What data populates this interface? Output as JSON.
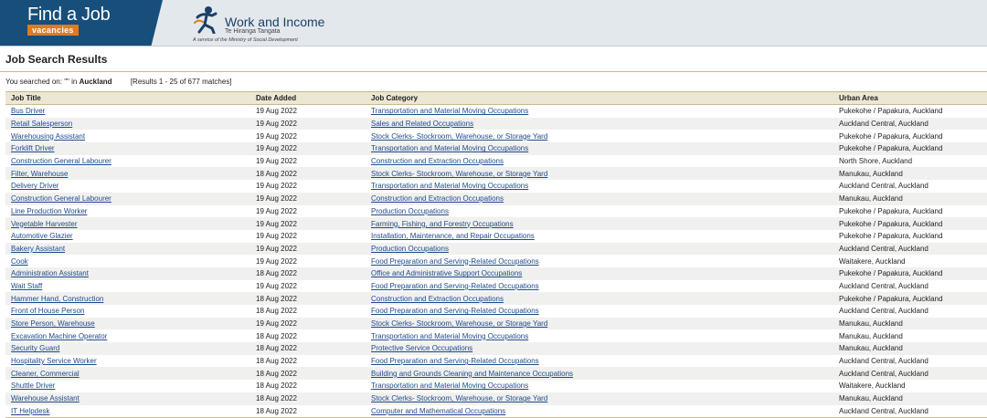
{
  "header": {
    "findajob_title": "Find a Job",
    "findajob_sub": "vacancies",
    "wi_title": "Work and Income",
    "wi_maori": "Te Hiranga Tangata",
    "wi_tagline": "A service of the Ministry of Social Development"
  },
  "page": {
    "title": "Job Search Results",
    "searched_on_prefix": "You searched on: \"\" in",
    "searched_location": "Auckland",
    "results_summary": "[Results 1 - 25 of 677 matches]"
  },
  "table": {
    "columns": [
      "Job Title",
      "Date Added",
      "Job Category",
      "Urban Area"
    ],
    "rows": [
      {
        "title": "Bus Driver",
        "date": "19 Aug 2022",
        "category": "Transportation and Material Moving Occupations",
        "area": "Pukekohe / Papakura, Auckland"
      },
      {
        "title": "Retail Salesperson",
        "date": "19 Aug 2022",
        "category": "Sales and Related Occupations",
        "area": "Auckland Central, Auckland"
      },
      {
        "title": "Warehousing Assistant",
        "date": "19 Aug 2022",
        "category": "Stock Clerks- Stockroom, Warehouse, or Storage Yard",
        "area": "Pukekohe / Papakura, Auckland"
      },
      {
        "title": "Forklift Driver",
        "date": "19 Aug 2022",
        "category": "Transportation and Material Moving Occupations",
        "area": "Pukekohe / Papakura, Auckland"
      },
      {
        "title": "Construction General Labourer",
        "date": "19 Aug 2022",
        "category": "Construction and Extraction Occupations",
        "area": "North Shore, Auckland"
      },
      {
        "title": "Filter, Warehouse",
        "date": "18 Aug 2022",
        "category": "Stock Clerks- Stockroom, Warehouse, or Storage Yard",
        "area": "Manukau, Auckland"
      },
      {
        "title": "Delivery Driver",
        "date": "19 Aug 2022",
        "category": "Transportation and Material Moving Occupations",
        "area": "Auckland Central, Auckland"
      },
      {
        "title": "Construction General Labourer",
        "date": "19 Aug 2022",
        "category": "Construction and Extraction Occupations",
        "area": "Manukau, Auckland"
      },
      {
        "title": "Line Production Worker",
        "date": "19 Aug 2022",
        "category": "Production Occupations",
        "area": "Pukekohe / Papakura, Auckland"
      },
      {
        "title": "Vegetable Harvester",
        "date": "19 Aug 2022",
        "category": "Farming, Fishing, and Forestry Occupations",
        "area": "Pukekohe / Papakura, Auckland"
      },
      {
        "title": "Automotive Glazier",
        "date": "19 Aug 2022",
        "category": "Installation, Maintenance, and Repair Occupations",
        "area": "Pukekohe / Papakura, Auckland"
      },
      {
        "title": "Bakery Assistant",
        "date": "19 Aug 2022",
        "category": "Production Occupations",
        "area": "Auckland Central, Auckland"
      },
      {
        "title": "Cook",
        "date": "19 Aug 2022",
        "category": "Food Preparation and Serving-Related Occupations",
        "area": "Waitakere, Auckland"
      },
      {
        "title": "Administration Assistant",
        "date": "18 Aug 2022",
        "category": "Office and Administrative Support Occupations",
        "area": "Pukekohe / Papakura, Auckland"
      },
      {
        "title": "Wait Staff",
        "date": "19 Aug 2022",
        "category": "Food Preparation and Serving-Related Occupations",
        "area": "Auckland Central, Auckland"
      },
      {
        "title": "Hammer Hand, Construction",
        "date": "18 Aug 2022",
        "category": "Construction and Extraction Occupations",
        "area": "Pukekohe / Papakura, Auckland"
      },
      {
        "title": "Front of House Person",
        "date": "18 Aug 2022",
        "category": "Food Preparation and Serving-Related Occupations",
        "area": "Auckland Central, Auckland"
      },
      {
        "title": "Store Person, Warehouse",
        "date": "19 Aug 2022",
        "category": "Stock Clerks- Stockroom, Warehouse, or Storage Yard",
        "area": "Manukau, Auckland"
      },
      {
        "title": "Excavation Machine Operator",
        "date": "18 Aug 2022",
        "category": "Transportation and Material Moving Occupations",
        "area": "Manukau, Auckland"
      },
      {
        "title": "Security Guard",
        "date": "18 Aug 2022",
        "category": "Protective Service Occupations",
        "area": "Manukau, Auckland"
      },
      {
        "title": "Hospitality Service Worker",
        "date": "18 Aug 2022",
        "category": "Food Preparation and Serving-Related Occupations",
        "area": "Auckland Central, Auckland"
      },
      {
        "title": "Cleaner, Commercial",
        "date": "18 Aug 2022",
        "category": "Building and Grounds Cleaning and Maintenance Occupations",
        "area": "Auckland Central, Auckland"
      },
      {
        "title": "Shuttle Driver",
        "date": "18 Aug 2022",
        "category": "Transportation and Material Moving Occupations",
        "area": "Waitakere, Auckland"
      },
      {
        "title": "Warehouse Assistant",
        "date": "18 Aug 2022",
        "category": "Stock Clerks- Stockroom, Warehouse, or Storage Yard",
        "area": "Manukau, Auckland"
      },
      {
        "title": "IT Helpdesk",
        "date": "18 Aug 2022",
        "category": "Computer and Mathematical Occupations",
        "area": "Auckland Central, Auckland"
      }
    ]
  }
}
